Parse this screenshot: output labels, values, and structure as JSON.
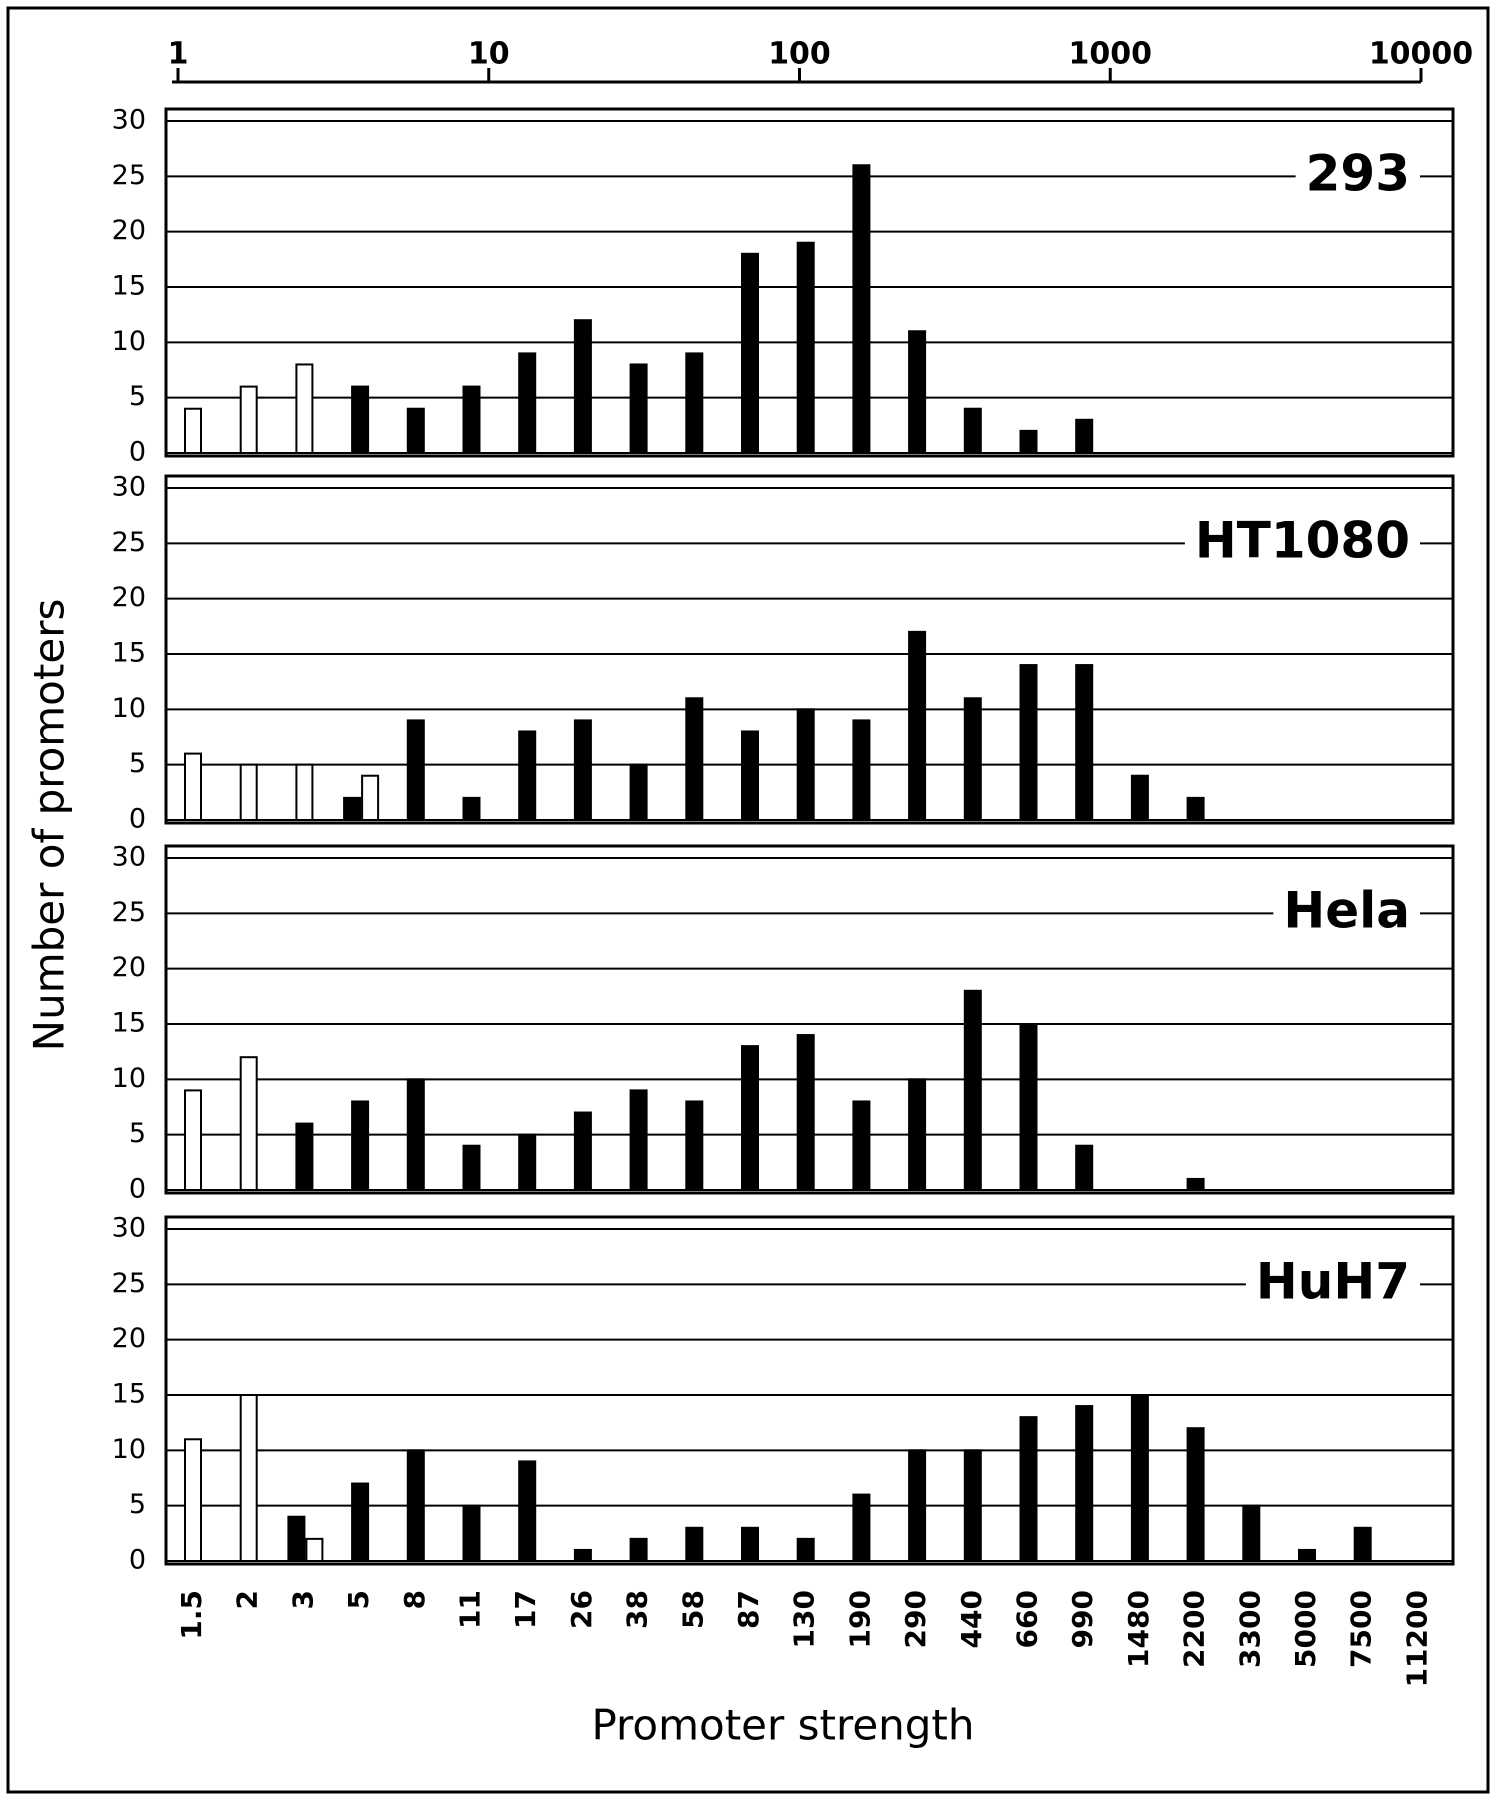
{
  "chart_data": {
    "type": "bar",
    "ylabel": "Number of promoters",
    "xlabel": "Promoter strength",
    "categories": [
      "1.5",
      "2",
      "3",
      "5",
      "8",
      "11",
      "17",
      "26",
      "38",
      "58",
      "87",
      "130",
      "190",
      "290",
      "440",
      "660",
      "990",
      "1480",
      "2200",
      "3300",
      "5000",
      "7500",
      "11200"
    ],
    "x2lim": [
      1,
      10000
    ],
    "x2ticks": [
      1,
      10,
      100,
      1000,
      10000
    ],
    "x2scale": "log",
    "ylim": [
      0,
      30
    ],
    "yticks": [
      0,
      5,
      10,
      15,
      20,
      25,
      30
    ],
    "grid": true,
    "panels": [
      {
        "title": "293",
        "series": [
          {
            "color": "#ffffff",
            "values": [
              4,
              6,
              8,
              null,
              null,
              null,
              null,
              null,
              null,
              null,
              null,
              null,
              null,
              null,
              null,
              null,
              null,
              null,
              null,
              null,
              null,
              null,
              null
            ]
          },
          {
            "color": "#000000",
            "values": [
              null,
              null,
              null,
              6,
              4,
              6,
              9,
              12,
              8,
              9,
              18,
              19,
              26,
              11,
              4,
              2,
              3,
              null,
              null,
              null,
              null,
              null,
              null
            ]
          }
        ]
      },
      {
        "title": "HT1080",
        "series": [
          {
            "color": "#ffffff",
            "values": [
              6,
              5,
              5,
              4,
              null,
              null,
              null,
              null,
              null,
              null,
              null,
              null,
              null,
              null,
              null,
              null,
              null,
              null,
              null,
              null,
              null,
              null,
              null
            ]
          },
          {
            "color": "#000000",
            "values": [
              null,
              null,
              null,
              2,
              9,
              2,
              8,
              9,
              5,
              11,
              8,
              10,
              9,
              17,
              11,
              14,
              14,
              4,
              2,
              null,
              null,
              null,
              null
            ]
          }
        ]
      },
      {
        "title": "Hela",
        "series": [
          {
            "color": "#ffffff",
            "values": [
              9,
              12,
              null,
              null,
              null,
              null,
              null,
              null,
              null,
              null,
              null,
              null,
              null,
              null,
              null,
              null,
              null,
              null,
              null,
              null,
              null,
              null,
              null
            ]
          },
          {
            "color": "#000000",
            "values": [
              null,
              null,
              6,
              8,
              10,
              4,
              5,
              7,
              9,
              8,
              13,
              14,
              8,
              10,
              18,
              15,
              4,
              null,
              1,
              null,
              null,
              null,
              null
            ]
          }
        ]
      },
      {
        "title": "HuH7",
        "series": [
          {
            "color": "#ffffff",
            "values": [
              11,
              15,
              2,
              null,
              null,
              null,
              null,
              null,
              null,
              null,
              null,
              null,
              null,
              null,
              null,
              null,
              null,
              null,
              null,
              null,
              null,
              null,
              null
            ]
          },
          {
            "color": "#000000",
            "values": [
              null,
              null,
              4,
              7,
              10,
              5,
              9,
              1,
              2,
              3,
              3,
              2,
              6,
              10,
              10,
              13,
              14,
              15,
              12,
              5,
              1,
              3,
              null
            ]
          }
        ]
      }
    ]
  }
}
